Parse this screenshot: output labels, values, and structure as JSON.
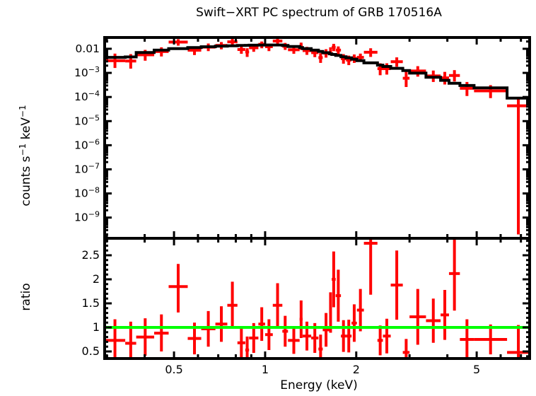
{
  "chart_data": {
    "type": "scatter",
    "title": "Swift−XRT PC spectrum of GRB 170516A",
    "background": "#ffffff",
    "x_axis": {
      "label": "Energy (keV)",
      "scale": "log",
      "range": [
        0.295,
        7.48
      ],
      "tick_values": [
        0.5,
        1,
        2,
        5
      ],
      "ticks": [
        "0.5",
        "1",
        "2",
        "5"
      ]
    },
    "panels": [
      {
        "id": "spectrum",
        "ylabel": "counts s⁻¹ keV⁻¹",
        "yscale": "log",
        "range": [
          1.38e-10,
          0.0294
        ],
        "ytick_values": [
          0.01,
          0.001,
          0.0001,
          1e-05,
          1e-06,
          1e-07,
          1e-08,
          1e-09
        ],
        "ytick_labels": [
          "0.01",
          "10⁻³",
          "10⁻⁴",
          "10⁻⁵",
          "10⁻⁶",
          "10⁻⁷",
          "10⁻⁸",
          "10⁻⁹"
        ],
        "data_color": "#ff0000",
        "model_color": "#000000"
      },
      {
        "id": "ratio",
        "ylabel": "ratio",
        "yscale": "linear",
        "range": [
          0.353,
          2.853
        ],
        "ytick_values": [
          0.5,
          1,
          1.5,
          2,
          2.5
        ],
        "ytick_labels": [
          "0.5",
          "1",
          "1.5",
          "2",
          "2.5"
        ],
        "data_color": "#ff0000",
        "reference_line": {
          "value": 1,
          "color": "#00ff00"
        }
      }
    ],
    "bins": [
      [
        0.295,
        0.345
      ],
      [
        0.345,
        0.375
      ],
      [
        0.375,
        0.43
      ],
      [
        0.43,
        0.48
      ],
      [
        0.48,
        0.555
      ],
      [
        0.555,
        0.615
      ],
      [
        0.615,
        0.685
      ],
      [
        0.685,
        0.75
      ],
      [
        0.75,
        0.81
      ],
      [
        0.81,
        0.86
      ],
      [
        0.86,
        0.885
      ],
      [
        0.885,
        0.95
      ],
      [
        0.95,
        1.0
      ],
      [
        1.0,
        1.06
      ],
      [
        1.06,
        1.14
      ],
      [
        1.14,
        1.19
      ],
      [
        1.19,
        1.3
      ],
      [
        1.3,
        1.33
      ],
      [
        1.33,
        1.42
      ],
      [
        1.42,
        1.5
      ],
      [
        1.5,
        1.55
      ],
      [
        1.55,
        1.63
      ],
      [
        1.63,
        1.66
      ],
      [
        1.66,
        1.71
      ],
      [
        1.71,
        1.78
      ],
      [
        1.78,
        1.85
      ],
      [
        1.85,
        1.93
      ],
      [
        1.93,
        2.01
      ],
      [
        2.01,
        2.12
      ],
      [
        2.12,
        2.35
      ],
      [
        2.35,
        2.45
      ],
      [
        2.45,
        2.6
      ],
      [
        2.6,
        2.85
      ],
      [
        2.85,
        3.0
      ],
      [
        3.0,
        3.4
      ],
      [
        3.4,
        3.8
      ],
      [
        3.8,
        4.05
      ],
      [
        4.05,
        4.4
      ],
      [
        4.4,
        4.9
      ],
      [
        4.9,
        6.3
      ],
      [
        6.3,
        7.48
      ]
    ],
    "model": [
      0.0044,
      0.0046,
      0.007,
      0.0088,
      0.0102,
      0.0113,
      0.0121,
      0.0128,
      0.0133,
      0.0137,
      0.0139,
      0.0141,
      0.0143,
      0.0144,
      0.0144,
      0.0138,
      0.0125,
      0.0113,
      0.0102,
      0.0088,
      0.0078,
      0.0069,
      0.0062,
      0.0058,
      0.0053,
      0.0047,
      0.0042,
      0.0037,
      0.0032,
      0.0026,
      0.0021,
      0.00185,
      0.00155,
      0.00125,
      0.00098,
      0.00066,
      0.00049,
      0.00037,
      0.0003,
      0.00024,
      9e-05
    ],
    "spectrum": {
      "rate": [
        0.0032,
        0.0031,
        0.0056,
        0.0077,
        0.0189,
        0.0087,
        0.0117,
        0.0137,
        0.0194,
        0.0093,
        0.0074,
        0.011,
        0.0153,
        0.0122,
        0.021,
        0.0127,
        0.0091,
        0.0132,
        0.0084,
        0.0069,
        0.0043,
        0.0066,
        0.0081,
        0.0116,
        0.0088,
        0.0039,
        0.0034,
        0.004,
        0.0044,
        0.0072,
        0.0015,
        0.0015,
        0.0029,
        0.0006,
        0.0012,
        0.00075,
        0.00062,
        0.00078,
        0.00023,
        0.00018,
        4.3e-05
      ],
      "err_lo": [
        0.0016,
        0.0015,
        0.0032,
        0.0048,
        0.0135,
        0.0055,
        0.008,
        0.0095,
        0.0135,
        0.0062,
        0.0046,
        0.0075,
        0.0105,
        0.008,
        0.015,
        0.009,
        0.0062,
        0.009,
        0.0056,
        0.0045,
        0.0026,
        0.0043,
        0.0054,
        0.008,
        0.006,
        0.0024,
        0.0021,
        0.0026,
        0.0029,
        0.0046,
        0.0008,
        0.00085,
        0.0018,
        0.00026,
        0.0007,
        0.00042,
        0.00033,
        0.00044,
        0.00011,
        9e-05,
        2e-10
      ],
      "err_hi": [
        0.0063,
        0.006,
        0.009,
        0.0115,
        0.025,
        0.012,
        0.0165,
        0.019,
        0.026,
        0.013,
        0.0105,
        0.015,
        0.02,
        0.016,
        0.028,
        0.0175,
        0.0125,
        0.018,
        0.012,
        0.01,
        0.0066,
        0.0096,
        0.0115,
        0.016,
        0.0125,
        0.006,
        0.0052,
        0.0058,
        0.0063,
        0.0105,
        0.0025,
        0.0025,
        0.0044,
        0.00115,
        0.0019,
        0.00125,
        0.0011,
        0.0013,
        0.00042,
        0.00031,
        8.6e-05
      ]
    },
    "ratio": {
      "value": [
        0.73,
        0.67,
        0.8,
        0.88,
        1.85,
        0.77,
        0.97,
        1.07,
        1.46,
        0.68,
        0.53,
        0.78,
        1.07,
        0.85,
        1.46,
        0.92,
        0.73,
        1.17,
        0.82,
        0.78,
        0.55,
        0.95,
        1.31,
        2.0,
        1.66,
        0.82,
        0.82,
        1.09,
        1.36,
        2.75,
        0.73,
        0.82,
        1.88,
        0.48,
        1.22,
        1.14,
        1.26,
        2.12,
        0.75,
        0.75,
        0.48
      ],
      "err_lo": [
        0.28,
        0.24,
        0.41,
        0.5,
        1.31,
        0.44,
        0.6,
        0.7,
        0.97,
        0.38,
        0.25,
        0.47,
        0.72,
        0.53,
        1.0,
        0.6,
        0.45,
        0.78,
        0.52,
        0.47,
        0.25,
        0.6,
        0.89,
        1.42,
        1.12,
        0.49,
        0.48,
        0.7,
        0.92,
        1.68,
        0.42,
        0.46,
        1.16,
        0.2,
        0.64,
        0.68,
        0.74,
        1.35,
        0.33,
        0.44,
        0.05
      ],
      "err_hi": [
        1.17,
        1.12,
        1.19,
        1.27,
        2.32,
        1.1,
        1.34,
        1.44,
        1.95,
        0.98,
        0.81,
        1.09,
        1.42,
        1.17,
        1.92,
        1.24,
        1.01,
        1.56,
        1.12,
        1.09,
        0.85,
        1.3,
        1.73,
        2.58,
        2.2,
        1.15,
        1.16,
        1.48,
        1.8,
        3.2,
        1.04,
        1.18,
        2.6,
        0.76,
        1.8,
        1.6,
        1.78,
        2.9,
        1.17,
        1.06,
        1.05
      ]
    }
  }
}
